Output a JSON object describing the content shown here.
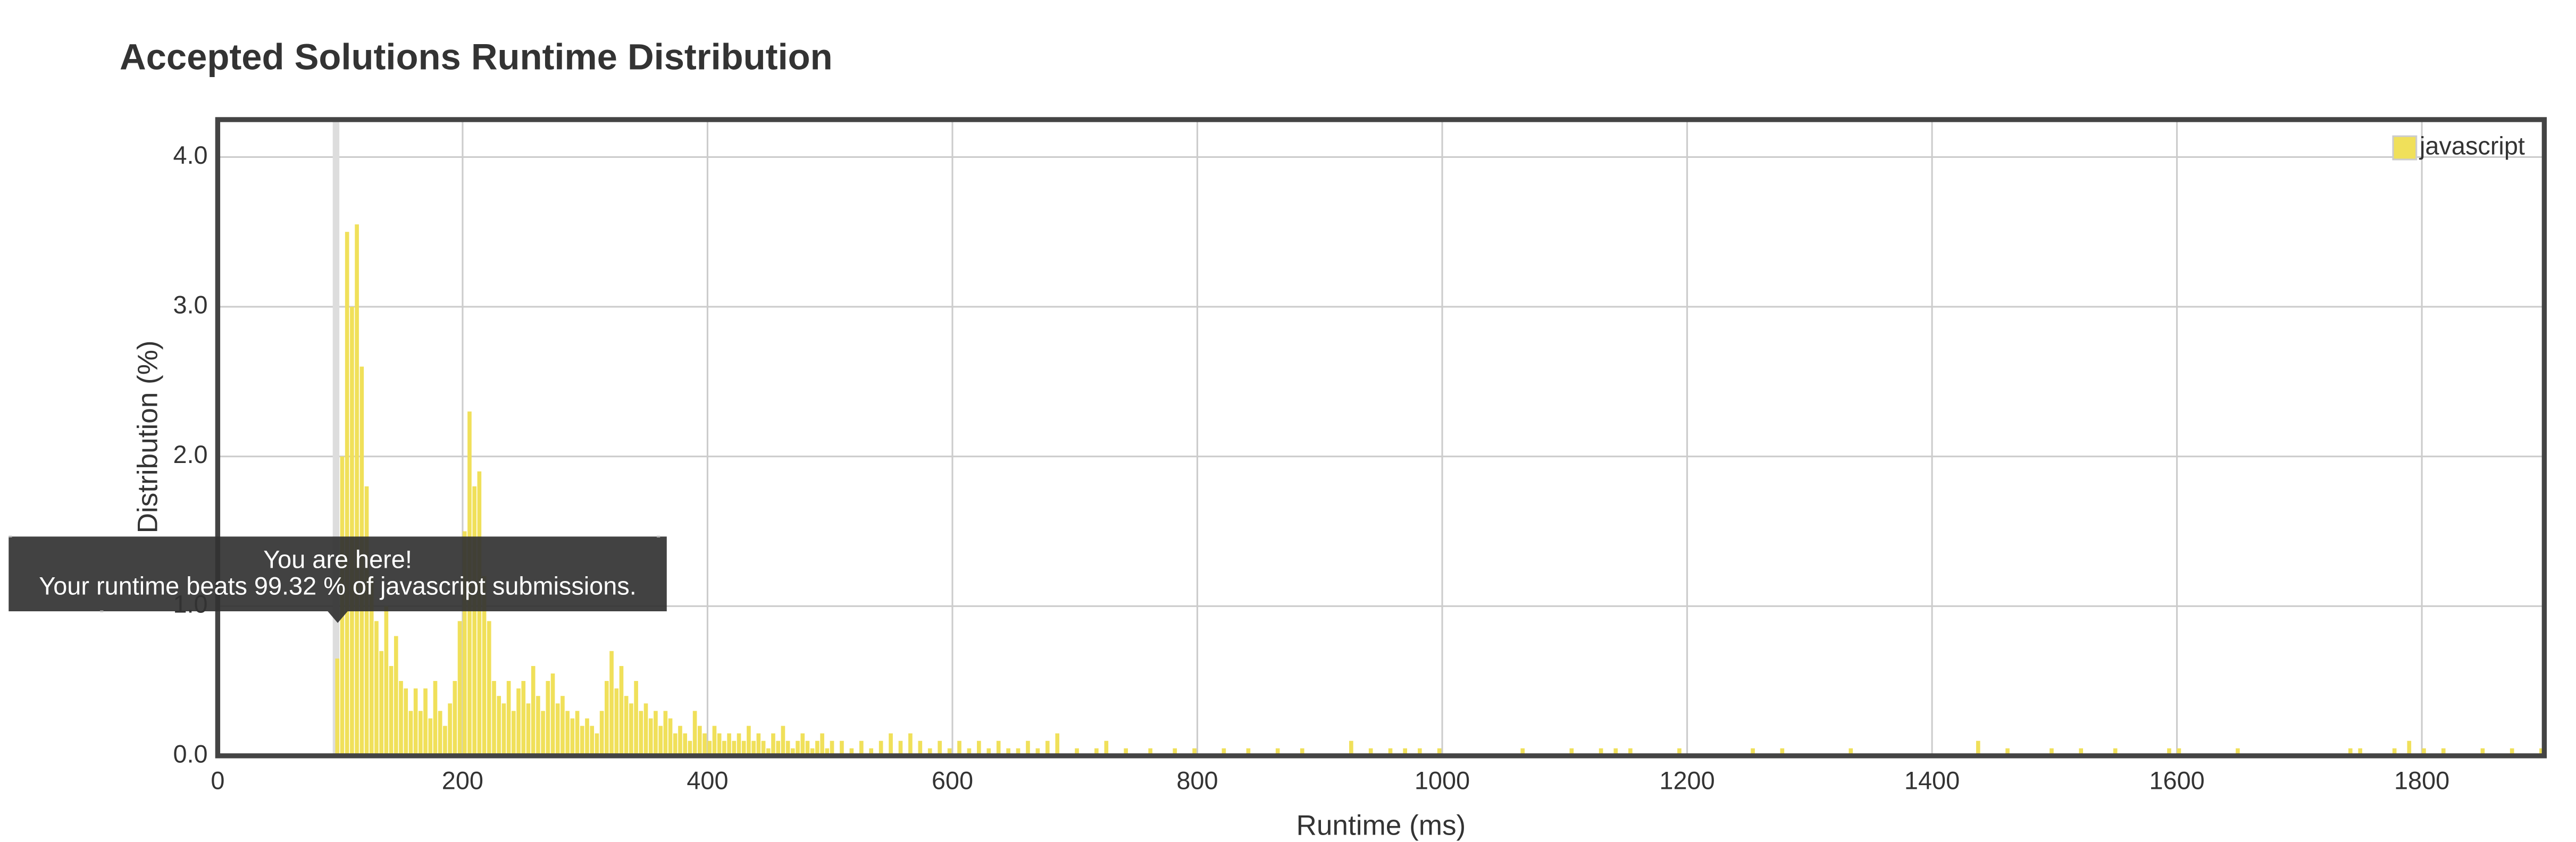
{
  "chart_data": {
    "type": "histogram",
    "title": "Accepted Solutions Runtime Distribution",
    "x_label": "Runtime (ms)",
    "y_label": "Distribution (%)",
    "xlim": [
      0,
      1900
    ],
    "ylim": [
      0,
      4.25
    ],
    "xticks": [
      0,
      200,
      400,
      600,
      800,
      1000,
      1200,
      1400,
      1600,
      1800
    ],
    "yticks": [
      {
        "value": 0,
        "label": "0.0"
      },
      {
        "value": 1,
        "label": "1.0"
      },
      {
        "value": 2,
        "label": "2.0"
      },
      {
        "value": 3,
        "label": "3.0"
      },
      {
        "value": 4,
        "label": "4.0"
      }
    ],
    "grid": true,
    "legend": "upper right",
    "series": [
      {
        "name": "javascript",
        "color": "#f0e05a",
        "x": [
          96,
          100,
          104,
          108,
          112,
          116,
          120,
          124,
          128,
          132,
          136,
          140,
          144,
          148,
          152,
          156,
          160,
          164,
          168,
          172,
          176,
          180,
          184,
          188,
          192,
          196,
          200,
          204,
          208,
          212,
          216,
          220,
          224,
          228,
          232,
          236,
          240,
          244,
          248,
          252,
          256,
          260,
          264,
          268,
          272,
          276,
          280,
          284,
          288,
          292,
          296,
          300,
          304,
          308,
          312,
          316,
          320,
          324,
          328,
          332,
          336,
          340,
          344,
          348,
          352,
          356,
          360,
          364,
          368,
          372,
          376,
          380,
          384,
          388,
          392,
          396,
          400,
          404,
          408,
          412,
          416,
          420,
          424,
          428,
          432,
          436,
          440,
          444,
          448,
          452,
          456,
          460,
          464,
          468,
          472,
          476,
          480,
          484,
          488,
          492,
          496,
          500,
          508,
          516,
          524,
          532,
          540,
          548,
          556,
          564,
          572,
          580,
          588,
          596,
          604,
          612,
          620,
          628,
          636,
          644,
          652,
          660,
          668,
          676,
          684,
          700,
          716,
          724,
          740,
          760,
          780,
          796,
          820,
          840,
          864,
          884,
          924,
          940,
          956,
          968,
          980,
          996,
          1064,
          1104,
          1128,
          1140,
          1152,
          1192,
          1252,
          1276,
          1332,
          1436,
          1460,
          1496,
          1520,
          1548,
          1592,
          1600,
          1648,
          1740,
          1748,
          1776,
          1788,
          1800,
          1816,
          1848,
          1872,
          1896
        ],
        "values": [
          0.65,
          2.0,
          3.5,
          3.0,
          3.55,
          2.6,
          1.8,
          1.2,
          0.9,
          0.7,
          1.0,
          0.6,
          0.8,
          0.5,
          0.45,
          0.3,
          0.45,
          0.3,
          0.45,
          0.25,
          0.5,
          0.3,
          0.2,
          0.35,
          0.5,
          0.9,
          1.5,
          2.3,
          1.8,
          1.9,
          1.2,
          0.9,
          0.5,
          0.4,
          0.35,
          0.5,
          0.3,
          0.45,
          0.5,
          0.35,
          0.6,
          0.4,
          0.3,
          0.5,
          0.55,
          0.35,
          0.4,
          0.3,
          0.25,
          0.3,
          0.2,
          0.25,
          0.2,
          0.15,
          0.3,
          0.5,
          0.7,
          0.45,
          0.6,
          0.4,
          0.35,
          0.5,
          0.3,
          0.35,
          0.25,
          0.3,
          0.2,
          0.3,
          0.25,
          0.15,
          0.2,
          0.15,
          0.1,
          0.3,
          0.2,
          0.15,
          0.1,
          0.2,
          0.15,
          0.1,
          0.15,
          0.1,
          0.15,
          0.1,
          0.2,
          0.1,
          0.15,
          0.1,
          0.05,
          0.15,
          0.1,
          0.2,
          0.1,
          0.05,
          0.1,
          0.15,
          0.1,
          0.05,
          0.1,
          0.15,
          0.05,
          0.1,
          0.1,
          0.05,
          0.1,
          0.05,
          0.1,
          0.15,
          0.1,
          0.15,
          0.1,
          0.05,
          0.1,
          0.05,
          0.1,
          0.05,
          0.1,
          0.05,
          0.1,
          0.05,
          0.05,
          0.1,
          0.05,
          0.1,
          0.15,
          0.05,
          0.05,
          0.1,
          0.05,
          0.05,
          0.05,
          0.05,
          0.05,
          0.05,
          0.05,
          0.05,
          0.1,
          0.05,
          0.05,
          0.05,
          0.05,
          0.05,
          0.05,
          0.05,
          0.05,
          0.05,
          0.05,
          0.05,
          0.05,
          0.05,
          0.05,
          0.1,
          0.05,
          0.05,
          0.05,
          0.05,
          0.05,
          0.05,
          0.05,
          0.05,
          0.05,
          0.05,
          0.1,
          0.05,
          0.05,
          0.05,
          0.05,
          0.05
        ]
      }
    ],
    "marker_x": 98,
    "tooltip": {
      "title": "You are here!",
      "text": "Your runtime beats 99.32 % of javascript submissions."
    }
  }
}
